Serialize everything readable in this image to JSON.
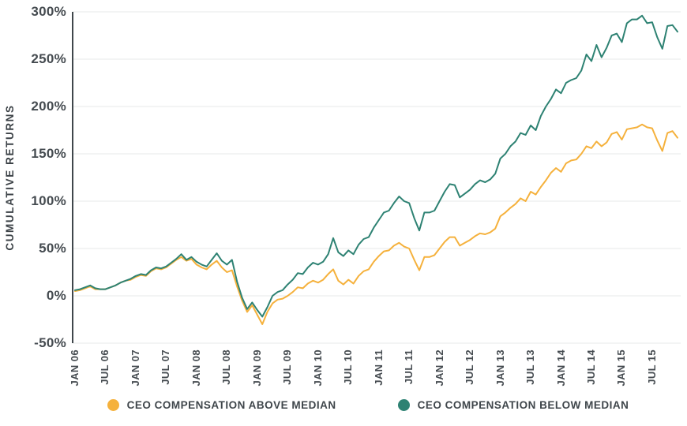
{
  "chart_data": {
    "type": "line",
    "title": "",
    "ylabel": "CUMULATIVE RETURNS",
    "xlabel": "",
    "ylim": [
      -50,
      300
    ],
    "ytick_step": 50,
    "grid": "horizontal",
    "legend_position": "bottom",
    "x_start": "JAN 06",
    "x_end": "DEC 15",
    "points_per_series": 120,
    "y_ticks": [
      {
        "v": 300,
        "label": "300%"
      },
      {
        "v": 250,
        "label": "250%"
      },
      {
        "v": 200,
        "label": "200%"
      },
      {
        "v": 150,
        "label": "150%"
      },
      {
        "v": 100,
        "label": "100%"
      },
      {
        "v": 50,
        "label": "50%"
      },
      {
        "v": 0,
        "label": "0%"
      },
      {
        "v": -50,
        "label": "-50%"
      }
    ],
    "x_ticks": [
      {
        "monthIndex": 0,
        "label": "JAN 06"
      },
      {
        "monthIndex": 6,
        "label": "JUL 06"
      },
      {
        "monthIndex": 12,
        "label": "JAN 07"
      },
      {
        "monthIndex": 18,
        "label": "JUL 07"
      },
      {
        "monthIndex": 24,
        "label": "JAN 08"
      },
      {
        "monthIndex": 30,
        "label": "JUL 08"
      },
      {
        "monthIndex": 36,
        "label": "JAN 09"
      },
      {
        "monthIndex": 42,
        "label": "JUL 09"
      },
      {
        "monthIndex": 48,
        "label": "JAN 10"
      },
      {
        "monthIndex": 54,
        "label": "JUL 10"
      },
      {
        "monthIndex": 60,
        "label": "JAN 11"
      },
      {
        "monthIndex": 66,
        "label": "JUL 11"
      },
      {
        "monthIndex": 72,
        "label": "JAN 12"
      },
      {
        "monthIndex": 78,
        "label": "JUL 12"
      },
      {
        "monthIndex": 84,
        "label": "JAN 13"
      },
      {
        "monthIndex": 90,
        "label": "JUL 13"
      },
      {
        "monthIndex": 96,
        "label": "JAN 14"
      },
      {
        "monthIndex": 102,
        "label": "JUL 14"
      },
      {
        "monthIndex": 108,
        "label": "JAN 15"
      },
      {
        "monthIndex": 114,
        "label": "JUL 15"
      }
    ],
    "series": [
      {
        "name": "CEO COMPENSATION ABOVE MEDIAN",
        "color": "#F5B13C",
        "values": [
          5,
          6,
          8,
          10,
          7,
          7,
          7,
          9,
          11,
          14,
          16,
          17,
          20,
          22,
          21,
          26,
          29,
          28,
          30,
          34,
          38,
          41,
          37,
          39,
          33,
          30,
          28,
          33,
          37,
          30,
          25,
          27,
          10,
          -5,
          -17,
          -10,
          -20,
          -30,
          -17,
          -8,
          -4,
          -3,
          0,
          4,
          9,
          8,
          13,
          16,
          14,
          17,
          23,
          28,
          16,
          12,
          17,
          13,
          21,
          26,
          28,
          36,
          42,
          47,
          48,
          53,
          56,
          52,
          50,
          38,
          27,
          41,
          41,
          43,
          50,
          57,
          62,
          62,
          53,
          56,
          59,
          63,
          66,
          65,
          67,
          71,
          84,
          88,
          93,
          97,
          103,
          100,
          110,
          107,
          115,
          122,
          130,
          135,
          131,
          140,
          143,
          144,
          150,
          158,
          156,
          163,
          158,
          162,
          171,
          173,
          165,
          176,
          177,
          178,
          181,
          178,
          177,
          164,
          153,
          172,
          174,
          167
        ]
      },
      {
        "name": "CEO COMPENSATION BELOW MEDIAN",
        "color": "#2E8273",
        "values": [
          6,
          7,
          9,
          11,
          8,
          7,
          7,
          9,
          11,
          14,
          16,
          18,
          21,
          23,
          22,
          27,
          30,
          29,
          31,
          35,
          39,
          44,
          38,
          41,
          36,
          33,
          31,
          38,
          45,
          37,
          33,
          38,
          15,
          -2,
          -14,
          -7,
          -15,
          -22,
          -12,
          0,
          4,
          6,
          12,
          17,
          24,
          23,
          30,
          35,
          33,
          36,
          44,
          61,
          46,
          42,
          48,
          44,
          54,
          60,
          62,
          72,
          80,
          88,
          90,
          98,
          105,
          100,
          98,
          82,
          69,
          88,
          88,
          90,
          100,
          110,
          118,
          117,
          104,
          108,
          112,
          118,
          122,
          120,
          123,
          129,
          145,
          150,
          158,
          163,
          172,
          170,
          180,
          175,
          190,
          200,
          208,
          218,
          214,
          225,
          228,
          230,
          238,
          255,
          248,
          265,
          252,
          262,
          275,
          277,
          268,
          288,
          292,
          292,
          296,
          288,
          289,
          273,
          261,
          285,
          286,
          279
        ]
      }
    ]
  },
  "colors": {
    "background": "#FFFFFF",
    "gridline": "#E7E8E9",
    "axis_line": "#3F464B",
    "axis_text": "#454B50",
    "series_above": "#F5B13C",
    "series_below": "#2E8273"
  }
}
